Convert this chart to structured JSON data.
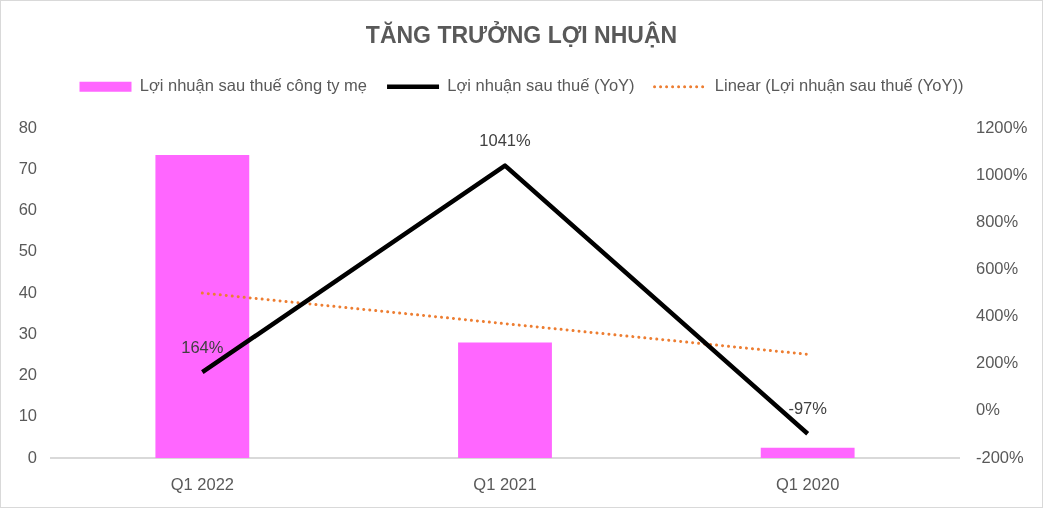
{
  "chart_data": {
    "type": "bar",
    "title": "TĂNG TRƯỞNG LỢI NHUẬN",
    "categories": [
      "Q1 2022",
      "Q1 2021",
      "Q1 2020"
    ],
    "series": [
      {
        "name": "Lợi nhuận sau thuế công ty mẹ",
        "type": "bar",
        "color": "#ff66ff",
        "values": [
          73.5,
          28,
          2.5
        ]
      },
      {
        "name": "Lợi nhuận sau thuế (YoY)",
        "type": "line",
        "axis": "y2",
        "color": "#000000",
        "values": [
          164,
          1041,
          -97
        ],
        "value_labels": [
          "164%",
          "1041%",
          "-97%"
        ],
        "line_style": "solid"
      },
      {
        "name": "Linear (Lợi nhuận sau thuế (YoY))",
        "type": "line",
        "axis": "y2",
        "color": "#ed7d31",
        "values": [
          500,
          370,
          240
        ],
        "line_style": "dotted"
      }
    ],
    "ylim": [
      0,
      80
    ],
    "yticks": [
      0,
      10,
      20,
      30,
      40,
      50,
      60,
      70,
      80
    ],
    "y2lim": [
      -200,
      1200
    ],
    "y2ticks": [
      {
        "value": -200,
        "label": "-200%"
      },
      {
        "value": 0,
        "label": "0%"
      },
      {
        "value": 200,
        "label": "200%"
      },
      {
        "value": 400,
        "label": "400%"
      },
      {
        "value": 600,
        "label": "600%"
      },
      {
        "value": 800,
        "label": "800%"
      },
      {
        "value": 1000,
        "label": "1000%"
      },
      {
        "value": 1200,
        "label": "1200%"
      }
    ],
    "grid": false,
    "legend": "top",
    "marker": "none"
  }
}
